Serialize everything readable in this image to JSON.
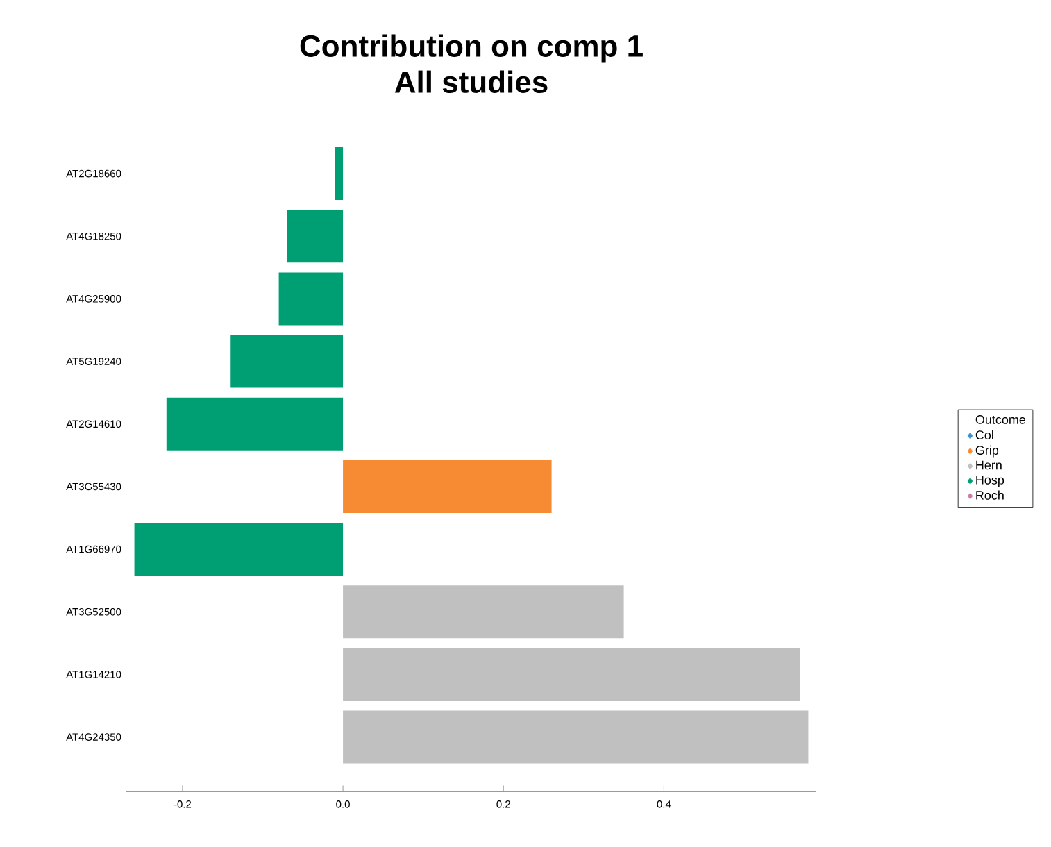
{
  "chart_data": {
    "type": "bar",
    "orientation": "horizontal",
    "title": "Contribution on comp 1",
    "subtitle": "All studies",
    "categories": [
      "AT2G18660",
      "AT4G18250",
      "AT4G25900",
      "AT5G19240",
      "AT2G14610",
      "AT3G55430",
      "AT1G66970",
      "AT3G52500",
      "AT1G14210",
      "AT4G24350"
    ],
    "series": [
      {
        "name": "Col",
        "color": "#3d8fd1",
        "values": [
          null,
          null,
          null,
          null,
          null,
          null,
          null,
          null,
          null,
          null
        ]
      },
      {
        "name": "Grip",
        "color": "#f68b33",
        "values": [
          null,
          null,
          null,
          null,
          null,
          0.26,
          null,
          null,
          null,
          null
        ]
      },
      {
        "name": "Hern",
        "color": "#c0c0c0",
        "values": [
          null,
          null,
          null,
          null,
          null,
          null,
          null,
          0.35,
          0.57,
          0.58
        ]
      },
      {
        "name": "Hosp",
        "color": "#009e73",
        "values": [
          -0.01,
          -0.07,
          -0.08,
          -0.14,
          -0.22,
          null,
          -0.26,
          null,
          null,
          null
        ]
      },
      {
        "name": "Roch",
        "color": "#cc79a7",
        "values": [
          null,
          null,
          null,
          null,
          null,
          null,
          null,
          null,
          null,
          null
        ]
      }
    ],
    "xlim": [
      -0.27,
      0.59
    ],
    "xticks": [
      -0.2,
      {
        "value": 0,
        "label": "0.0"
      },
      0.2,
      0.4
    ],
    "legend": "right",
    "legend_title": "Outcome"
  }
}
